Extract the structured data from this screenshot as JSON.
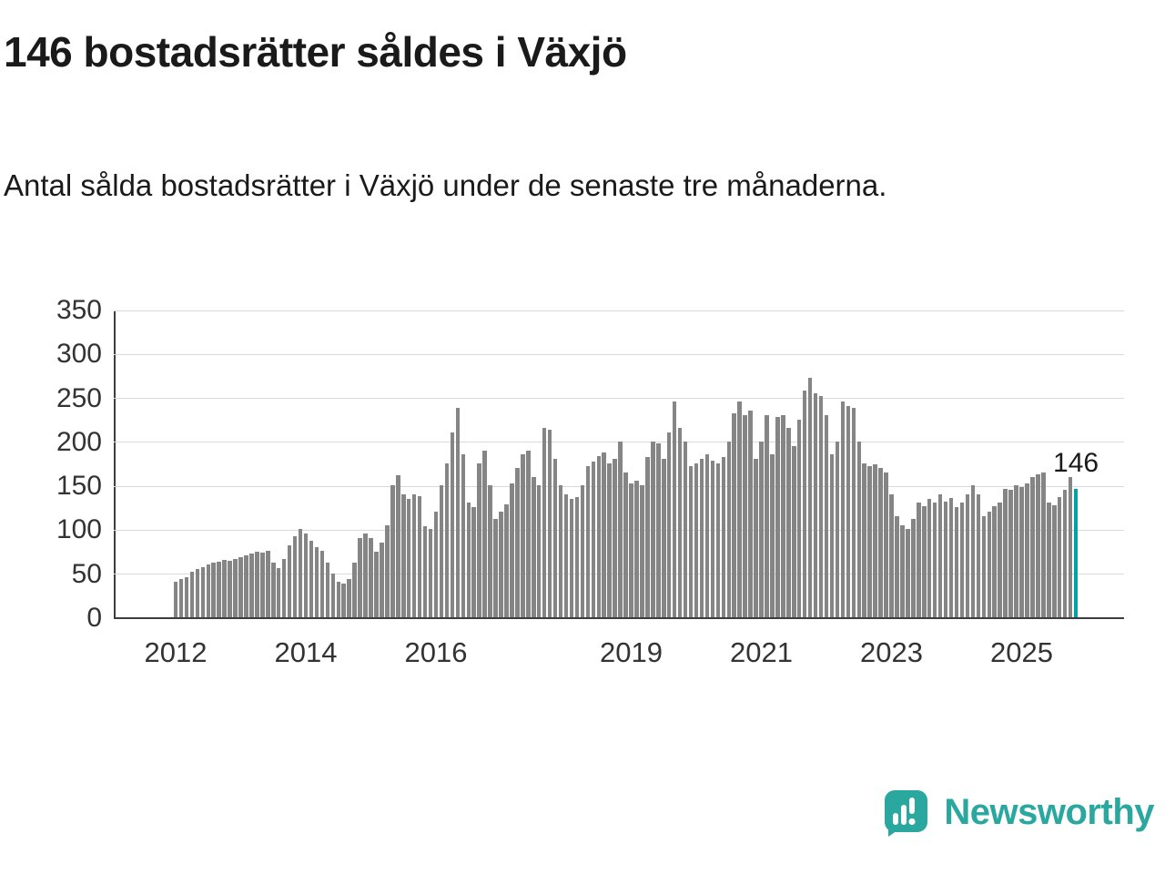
{
  "page": {
    "title": "146 bostadsrätter såldes i Växjö",
    "subtitle": "Antal sålda bostadsrätter i Växjö under de senaste tre månaderna."
  },
  "branding": {
    "name": "Newsworthy",
    "color": "#2aa79e",
    "icon": "newsworthy-speech-bubble-chart-icon"
  },
  "chart_data": {
    "type": "bar",
    "title": "146 bostadsrätter såldes i Växjö",
    "subtitle": "Antal sålda bostadsrätter i Växjö under de senaste tre månaderna.",
    "ylabel": "",
    "xlabel": "",
    "ylim": [
      0,
      350
    ],
    "y_ticks": [
      0,
      50,
      100,
      150,
      200,
      250,
      300,
      350
    ],
    "x_tick_labels": [
      "2012",
      "2014",
      "2016",
      "2019",
      "2021",
      "2023",
      "2025"
    ],
    "x_tick_years": [
      2012,
      2014,
      2016,
      2019,
      2021,
      2023,
      2025
    ],
    "x_start_year": 2012,
    "grid": true,
    "bar_color": "#858585",
    "highlight_color": "#00a2a2",
    "highlight_index": 166,
    "highlight_value_label": "146",
    "values": [
      40,
      43,
      46,
      52,
      55,
      57,
      60,
      62,
      63,
      65,
      64,
      66,
      68,
      70,
      73,
      75,
      74,
      76,
      62,
      56,
      66,
      82,
      92,
      100,
      95,
      87,
      80,
      76,
      62,
      50,
      40,
      38,
      44,
      62,
      90,
      95,
      90,
      75,
      85,
      105,
      150,
      162,
      140,
      135,
      140,
      138,
      104,
      100,
      120,
      150,
      175,
      210,
      238,
      185,
      130,
      125,
      175,
      190,
      150,
      112,
      120,
      128,
      152,
      170,
      185,
      190,
      160,
      150,
      215,
      213,
      180,
      150,
      140,
      135,
      137,
      150,
      172,
      177,
      183,
      187,
      175,
      180,
      200,
      165,
      152,
      155,
      150,
      182,
      200,
      198,
      180,
      210,
      245,
      215,
      200,
      172,
      175,
      180,
      185,
      178,
      175,
      182,
      200,
      232,
      245,
      230,
      235,
      180,
      200,
      230,
      185,
      228,
      230,
      215,
      195,
      225,
      258,
      272,
      255,
      252,
      230,
      185,
      200,
      245,
      240,
      238,
      200,
      175,
      172,
      174,
      170,
      165,
      140,
      115,
      105,
      100,
      112,
      130,
      126,
      135,
      130,
      140,
      132,
      136,
      125,
      130,
      140,
      150,
      140,
      115,
      120,
      126,
      130,
      146,
      145,
      150,
      148,
      152,
      160,
      163,
      165,
      130,
      127,
      137,
      145,
      160,
      146
    ]
  }
}
